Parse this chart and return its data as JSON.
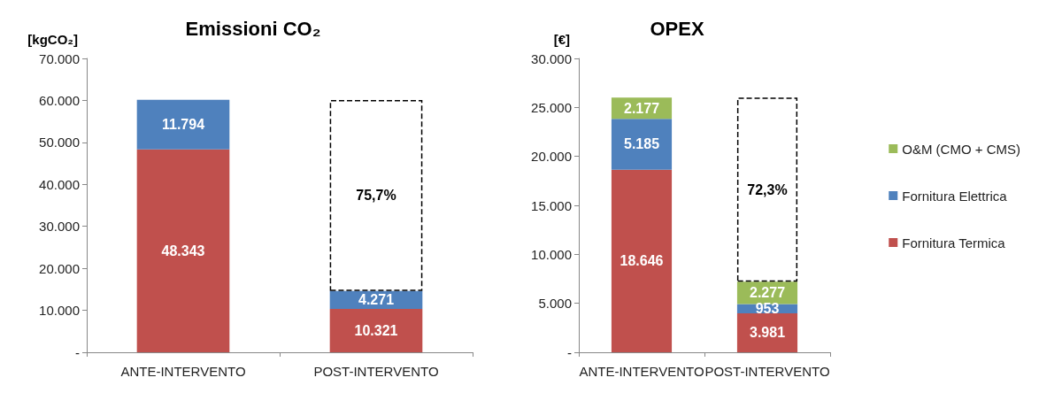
{
  "chart_data": [
    {
      "type": "bar",
      "title": "Emissioni CO₂",
      "ylabel": "[kgCO₂]",
      "categories": [
        "ANTE-INTERVENTO",
        "POST-INTERVENTO"
      ],
      "stacked": true,
      "ylim": [
        0,
        70000
      ],
      "yticks": [
        {
          "value": 0,
          "label": "-"
        },
        {
          "value": 10000,
          "label": "10.000"
        },
        {
          "value": 20000,
          "label": "20.000"
        },
        {
          "value": 30000,
          "label": "30.000"
        },
        {
          "value": 40000,
          "label": "40.000"
        },
        {
          "value": 50000,
          "label": "50.000"
        },
        {
          "value": 60000,
          "label": "60.000"
        },
        {
          "value": 70000,
          "label": "70.000"
        }
      ],
      "grid": false,
      "legend": false,
      "series": [
        {
          "color": "#c0504d",
          "values": [
            48343,
            10321
          ],
          "value_labels": [
            "48.343",
            "10.321"
          ]
        },
        {
          "color": "#4f81bd",
          "values": [
            11794,
            4271
          ],
          "value_labels": [
            "11.794",
            "4.271"
          ]
        },
        {
          "color": "#000000",
          "line_style": "dashed",
          "values": [
            null,
            45500
          ]
        }
      ],
      "annotations": [
        "75,7%"
      ]
    },
    {
      "type": "bar",
      "title": "OPEX",
      "ylabel": "[€]",
      "categories": [
        "ANTE-INTERVENTO",
        "POST-INTERVENTO"
      ],
      "stacked": true,
      "ylim": [
        0,
        30000
      ],
      "yticks": [
        {
          "value": 0,
          "label": "-"
        },
        {
          "value": 5000,
          "label": "5.000"
        },
        {
          "value": 10000,
          "label": "10.000"
        },
        {
          "value": 15000,
          "label": "15.000"
        },
        {
          "value": 20000,
          "label": "20.000"
        },
        {
          "value": 25000,
          "label": "25.000"
        },
        {
          "value": 30000,
          "label": "30.000"
        }
      ],
      "grid": false,
      "legend": "right",
      "series": [
        {
          "name": "Fornitura Termica",
          "color": "#c0504d",
          "values": [
            18646,
            3981
          ],
          "value_labels": [
            "18.646",
            "3.981"
          ]
        },
        {
          "name": "Fornitura Elettrica",
          "color": "#4f81bd",
          "values": [
            5185,
            953
          ],
          "value_labels": [
            "5.185",
            "953"
          ]
        },
        {
          "name": "O&M (CMO + CMS)",
          "color": "#9bbb59",
          "values": [
            2177,
            2277
          ],
          "value_labels": [
            "2.177",
            "2.277"
          ]
        },
        {
          "color": "#000000",
          "line_style": "dashed",
          "values": [
            null,
            18800
          ]
        }
      ],
      "annotations": [
        "72,3%"
      ]
    }
  ]
}
